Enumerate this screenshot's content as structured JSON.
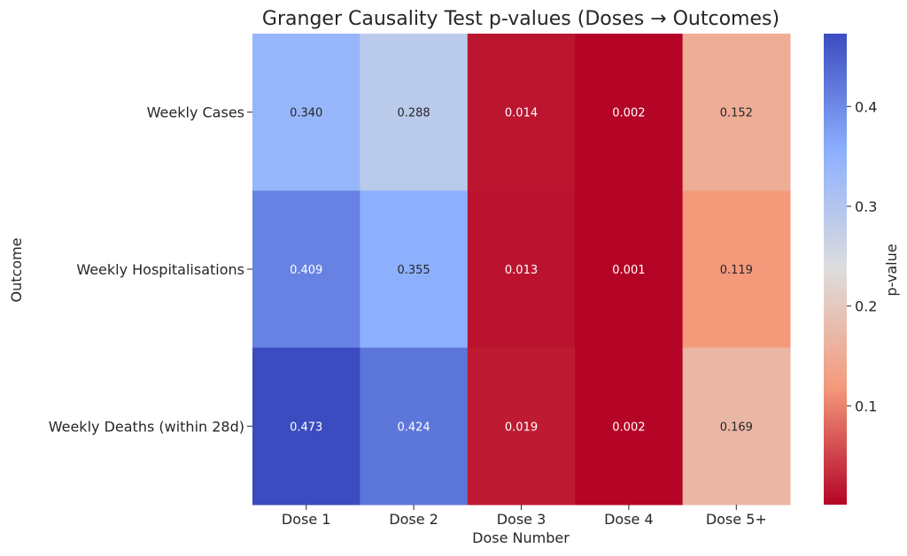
{
  "chart_data": {
    "type": "heatmap",
    "title": "Granger Causality Test p-values (Doses → Outcomes)",
    "xlabel": "Dose Number",
    "ylabel": "Outcome",
    "x_categories": [
      "Dose 1",
      "Dose 2",
      "Dose 3",
      "Dose 4",
      "Dose 5+"
    ],
    "y_categories": [
      "Weekly Cases",
      "Weekly Hospitalisations",
      "Weekly Deaths (within 28d)"
    ],
    "values": [
      [
        0.34,
        0.288,
        0.014,
        0.002,
        0.152
      ],
      [
        0.409,
        0.355,
        0.013,
        0.001,
        0.119
      ],
      [
        0.473,
        0.424,
        0.019,
        0.002,
        0.169
      ]
    ],
    "value_format": "3 decimals",
    "colormap": "coolwarm_r",
    "colorbar": {
      "label": "p-value",
      "range": [
        0.001,
        0.473
      ],
      "ticks": [
        0.1,
        0.2,
        0.3,
        0.4
      ],
      "tick_labels": [
        "0.1",
        "0.2",
        "0.3",
        "0.4"
      ]
    },
    "colors": {
      "low": "#b40426",
      "mid": "#dddddd",
      "high": "#3b4cc0"
    }
  }
}
